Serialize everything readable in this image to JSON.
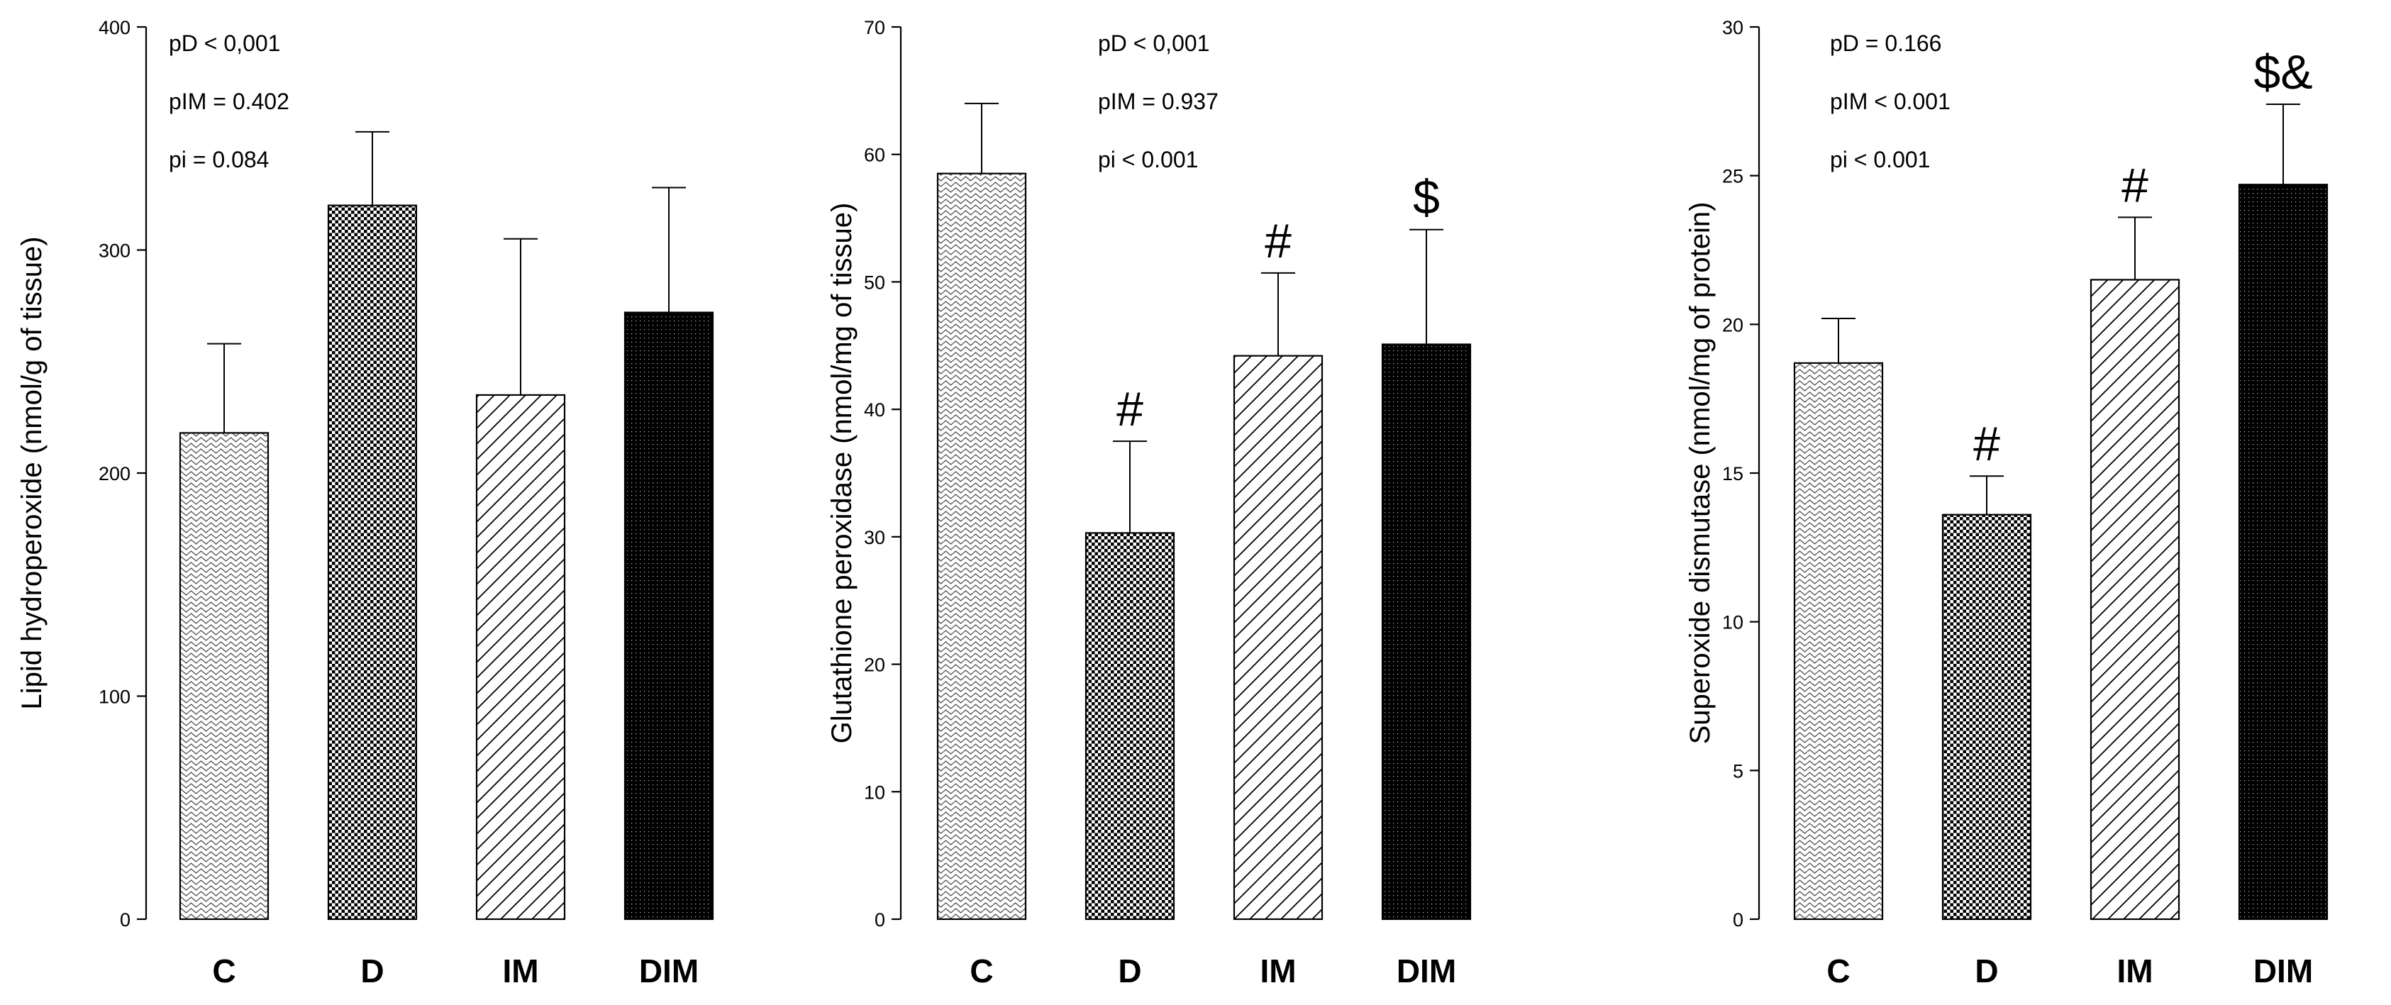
{
  "chart_data": [
    {
      "type": "bar",
      "categories": [
        "C",
        "D",
        "IM",
        "DIM"
      ],
      "values": [
        218,
        320,
        235,
        272
      ],
      "errors": [
        40,
        33,
        70,
        56
      ],
      "patterns": [
        "wave",
        "checker",
        "diagonal",
        "dots"
      ],
      "significance": [
        "",
        "",
        "",
        ""
      ],
      "ylabel": "Lipid hydroperoxide (nmol/g of tissue)",
      "ylim": [
        0,
        400
      ],
      "yticks": [
        0,
        100,
        200,
        300,
        400
      ],
      "annotations": [
        "pD < 0,001",
        "pIM = 0.402",
        "pi = 0.084"
      ]
    },
    {
      "type": "bar",
      "categories": [
        "C",
        "D",
        "IM",
        "DIM"
      ],
      "values": [
        58.5,
        30.3,
        44.2,
        45.1
      ],
      "errors": [
        5.5,
        7.2,
        6.5,
        9.0
      ],
      "patterns": [
        "wave",
        "checker",
        "diagonal",
        "dots"
      ],
      "significance": [
        "",
        "#",
        "#",
        "$"
      ],
      "ylabel": "Glutathione peroxidase (nmol/mg of tissue)",
      "ylim": [
        0,
        70
      ],
      "yticks": [
        0,
        10,
        20,
        30,
        40,
        50,
        60,
        70
      ],
      "annotations": [
        "pD < 0,001",
        "pIM = 0.937",
        "pi < 0.001"
      ]
    },
    {
      "type": "bar",
      "categories": [
        "C",
        "D",
        "IM",
        "DIM"
      ],
      "values": [
        18.7,
        13.6,
        21.5,
        24.7
      ],
      "errors": [
        1.5,
        1.3,
        2.1,
        2.7
      ],
      "patterns": [
        "wave",
        "checker",
        "diagonal",
        "dots"
      ],
      "significance": [
        "",
        "#",
        "#",
        "$&"
      ],
      "ylabel": "Superoxide dismutase (nmol/mg of protein)",
      "ylim": [
        0,
        30
      ],
      "yticks": [
        0,
        5,
        10,
        15,
        20,
        25,
        30
      ],
      "annotations": [
        "pD = 0.166",
        "pIM < 0.001",
        "pi < 0.001"
      ]
    }
  ]
}
